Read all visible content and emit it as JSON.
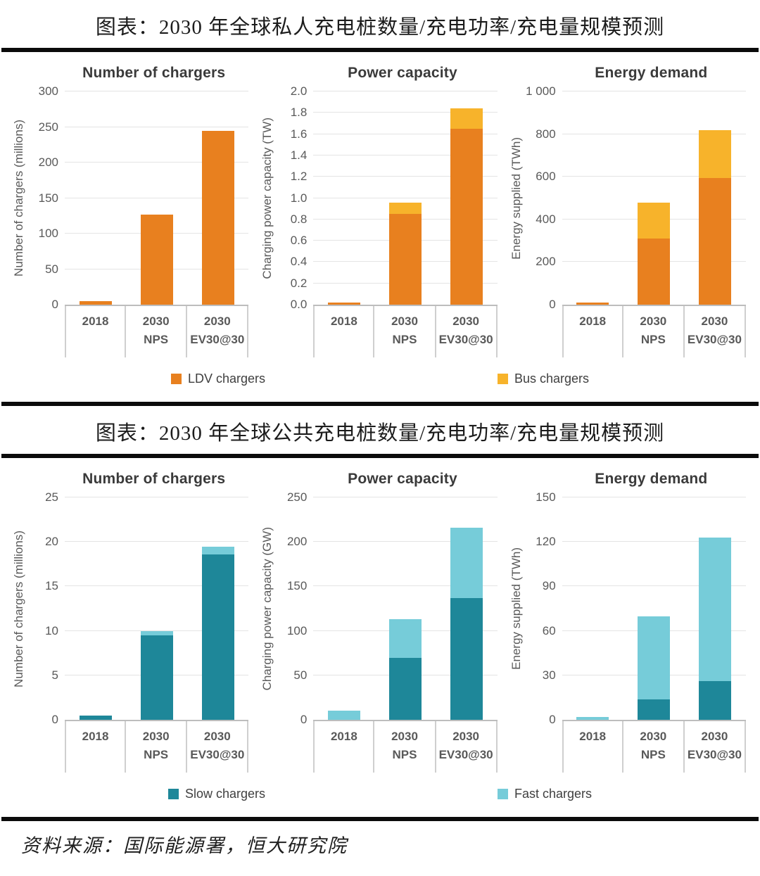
{
  "panels": {
    "private": {
      "title": "图表：2030 年全球私人充电桩数量/充电功率/充电量规模预测",
      "legend": [
        {
          "label": "LDV chargers",
          "color": "#E8801F"
        },
        {
          "label": "Bus chargers",
          "color": "#F7B32B"
        }
      ]
    },
    "public": {
      "title": "图表：2030 年全球公共充电桩数量/充电功率/充电量规模预测",
      "legend": [
        {
          "label": "Slow chargers",
          "color": "#1E8799"
        },
        {
          "label": "Fast chargers",
          "color": "#76CCD9"
        }
      ]
    }
  },
  "source": {
    "text": "资料来源：国际能源署，恒大研究院"
  },
  "colors": {
    "grid": "#e4e4e4",
    "axis": "#bdbdbd",
    "tick_text": "#595959",
    "title_text": "#3a3a3a",
    "rule": "#0b0b0b"
  },
  "chart_data": [
    {
      "panel": "private",
      "type": "bar",
      "stacked": true,
      "title": "Number of chargers",
      "xlabel": "",
      "ylabel": "Number of chargers (millions)",
      "ylim": [
        0,
        300
      ],
      "ytick_labels": [
        "0",
        "50",
        "100",
        "150",
        "200",
        "250",
        "300"
      ],
      "grid": true,
      "legend_position": "bottom",
      "categories": [
        [
          "2018"
        ],
        [
          "2030",
          "NPS"
        ],
        [
          "2030",
          "EV30@30"
        ]
      ],
      "series": [
        {
          "name": "LDV chargers",
          "color": "#E8801F",
          "values": [
            5,
            127,
            245
          ]
        },
        {
          "name": "Bus chargers",
          "color": "#F7B32B",
          "values": [
            0,
            0,
            0
          ]
        }
      ]
    },
    {
      "panel": "private",
      "type": "bar",
      "stacked": true,
      "title": "Power capacity",
      "xlabel": "",
      "ylabel": "Charging power capacity (TW)",
      "ylim": [
        0,
        2.0
      ],
      "ytick_labels": [
        "0.0",
        "0.2",
        "0.4",
        "0.6",
        "0.8",
        "1.0",
        "1.2",
        "1.4",
        "1.6",
        "1.8",
        "2.0"
      ],
      "grid": true,
      "legend_position": "bottom",
      "categories": [
        [
          "2018"
        ],
        [
          "2030",
          "NPS"
        ],
        [
          "2030",
          "EV30@30"
        ]
      ],
      "series": [
        {
          "name": "LDV chargers",
          "color": "#E8801F",
          "values": [
            0.02,
            0.85,
            1.65
          ]
        },
        {
          "name": "Bus chargers",
          "color": "#F7B32B",
          "values": [
            0,
            0.11,
            0.19
          ]
        }
      ]
    },
    {
      "panel": "private",
      "type": "bar",
      "stacked": true,
      "title": "Energy demand",
      "xlabel": "",
      "ylabel": "Energy supplied (TWh)",
      "ylim": [
        0,
        1000
      ],
      "ytick_labels": [
        "0",
        "200",
        "400",
        "600",
        "800",
        "1 000"
      ],
      "grid": true,
      "legend_position": "bottom",
      "categories": [
        [
          "2018"
        ],
        [
          "2030",
          "NPS"
        ],
        [
          "2030",
          "EV30@30"
        ]
      ],
      "series": [
        {
          "name": "LDV chargers",
          "color": "#E8801F",
          "values": [
            10,
            310,
            595
          ]
        },
        {
          "name": "Bus chargers",
          "color": "#F7B32B",
          "values": [
            0,
            170,
            225
          ]
        }
      ]
    },
    {
      "panel": "public",
      "type": "bar",
      "stacked": true,
      "title": "Number of chargers",
      "xlabel": "",
      "ylabel": "Number of chargers (millions)",
      "ylim": [
        0,
        25
      ],
      "ytick_labels": [
        "0",
        "5",
        "10",
        "15",
        "20",
        "25"
      ],
      "grid": true,
      "legend_position": "bottom",
      "categories": [
        [
          "2018"
        ],
        [
          "2030",
          "NPS"
        ],
        [
          "2030",
          "EV30@30"
        ]
      ],
      "series": [
        {
          "name": "Slow chargers",
          "color": "#1E8799",
          "values": [
            0.5,
            9.5,
            18.6
          ]
        },
        {
          "name": "Fast chargers",
          "color": "#76CCD9",
          "values": [
            0,
            0.5,
            0.9
          ]
        }
      ]
    },
    {
      "panel": "public",
      "type": "bar",
      "stacked": true,
      "title": "Power capacity",
      "xlabel": "",
      "ylabel": "Charging power capacity (GW)",
      "ylim": [
        0,
        250
      ],
      "ytick_labels": [
        "0",
        "50",
        "100",
        "150",
        "200",
        "250"
      ],
      "grid": true,
      "legend_position": "bottom",
      "categories": [
        [
          "2018"
        ],
        [
          "2030",
          "NPS"
        ],
        [
          "2030",
          "EV30@30"
        ]
      ],
      "series": [
        {
          "name": "Slow chargers",
          "color": "#1E8799",
          "values": [
            0,
            70,
            137
          ]
        },
        {
          "name": "Fast chargers",
          "color": "#76CCD9",
          "values": [
            10,
            43,
            79
          ]
        }
      ]
    },
    {
      "panel": "public",
      "type": "bar",
      "stacked": true,
      "title": "Energy demand",
      "xlabel": "",
      "ylabel": "Energy supplied (TWh)",
      "ylim": [
        0,
        150
      ],
      "ytick_labels": [
        "0",
        "30",
        "60",
        "90",
        "120",
        "150"
      ],
      "grid": true,
      "legend_position": "bottom",
      "categories": [
        [
          "2018"
        ],
        [
          "2030",
          "NPS"
        ],
        [
          "2030",
          "EV30@30"
        ]
      ],
      "series": [
        {
          "name": "Slow chargers",
          "color": "#1E8799",
          "values": [
            0,
            14,
            26
          ]
        },
        {
          "name": "Fast chargers",
          "color": "#76CCD9",
          "values": [
            2,
            56,
            97
          ]
        }
      ]
    }
  ]
}
